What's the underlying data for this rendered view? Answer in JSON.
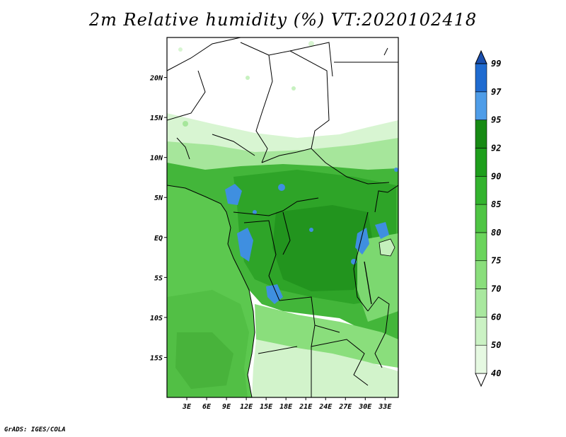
{
  "title": "2m Relative humidity (%) VT:2020102418",
  "credit": "GrADS: IGES/COLA",
  "map": {
    "lat_ticks": [
      "20N",
      "15N",
      "10N",
      "5N",
      "EQ",
      "5S",
      "10S",
      "15S"
    ],
    "lon_ticks": [
      "3E",
      "6E",
      "9E",
      "12E",
      "15E",
      "18E",
      "21E",
      "24E",
      "27E",
      "30E",
      "33E"
    ],
    "lon_range": [
      0,
      35
    ],
    "lat_range": [
      -20,
      25
    ]
  },
  "colorbar": {
    "levels": [
      "40",
      "50",
      "60",
      "70",
      "75",
      "80",
      "85",
      "90",
      "92",
      "95",
      "97",
      "99"
    ],
    "colors": [
      "#ffffff",
      "#e6f9e2",
      "#cbf2c4",
      "#a9e89f",
      "#8ade7c",
      "#6bd45c",
      "#4fc544",
      "#33b32e",
      "#1e9e1c",
      "#178a14",
      "#4f9de8",
      "#1f6bd0",
      "#1a4fae"
    ]
  }
}
